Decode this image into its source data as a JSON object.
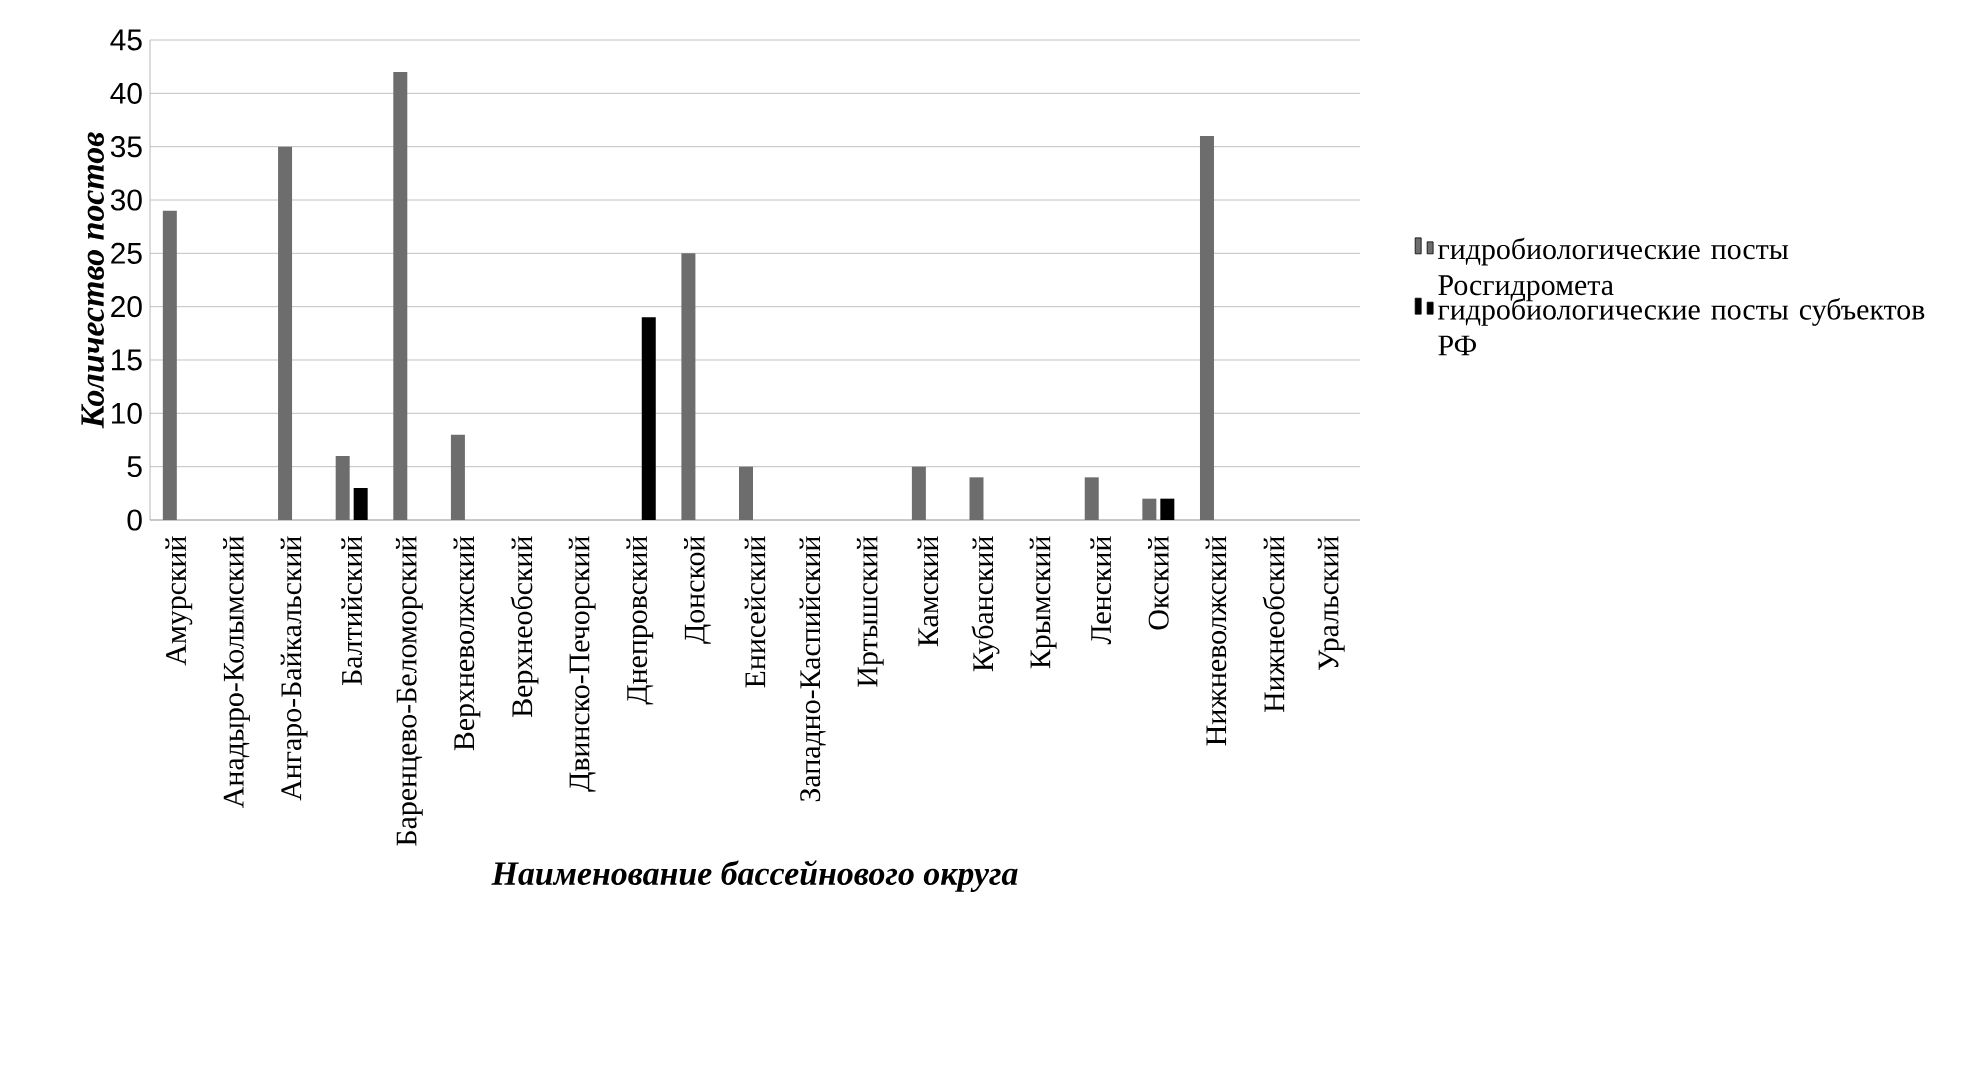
{
  "chart_data": {
    "type": "bar",
    "xlabel": "Наименование бассейнового округа",
    "ylabel": "Количество постов",
    "categories": [
      "Амурский",
      "Анадыро-Колымский",
      "Ангаро-Байкальский",
      "Балтийский",
      "Баренцево-Беломорский",
      "Верхневолжский",
      "Верхнеобский",
      "Двинско-Печорский",
      "Днепровский",
      "Донской",
      "Енисейский",
      "Западно-Каспийский",
      "Иртышский",
      "Камский",
      "Кубанский",
      "Крымский",
      "Ленский",
      "Окский",
      "Нижневолжский",
      "Нижнеобский",
      "Уральский"
    ],
    "series": [
      {
        "name": "гидробиологические посты Росгидромета",
        "color": "#6d6d6d",
        "values": [
          29,
          null,
          35,
          6,
          42,
          8,
          null,
          null,
          null,
          25,
          5,
          null,
          null,
          5,
          4,
          null,
          4,
          2,
          36,
          null,
          null
        ]
      },
      {
        "name": "гидробиологические посты субъектов РФ",
        "color": "#000000",
        "values": [
          null,
          null,
          null,
          3,
          null,
          null,
          null,
          null,
          19,
          null,
          null,
          null,
          null,
          null,
          null,
          null,
          null,
          2,
          null,
          null,
          null
        ]
      }
    ],
    "ylim": [
      0,
      45
    ],
    "yticks": [
      0,
      5,
      10,
      15,
      20,
      25,
      30,
      35,
      40,
      45
    ],
    "grid": "y",
    "legend": "right"
  }
}
